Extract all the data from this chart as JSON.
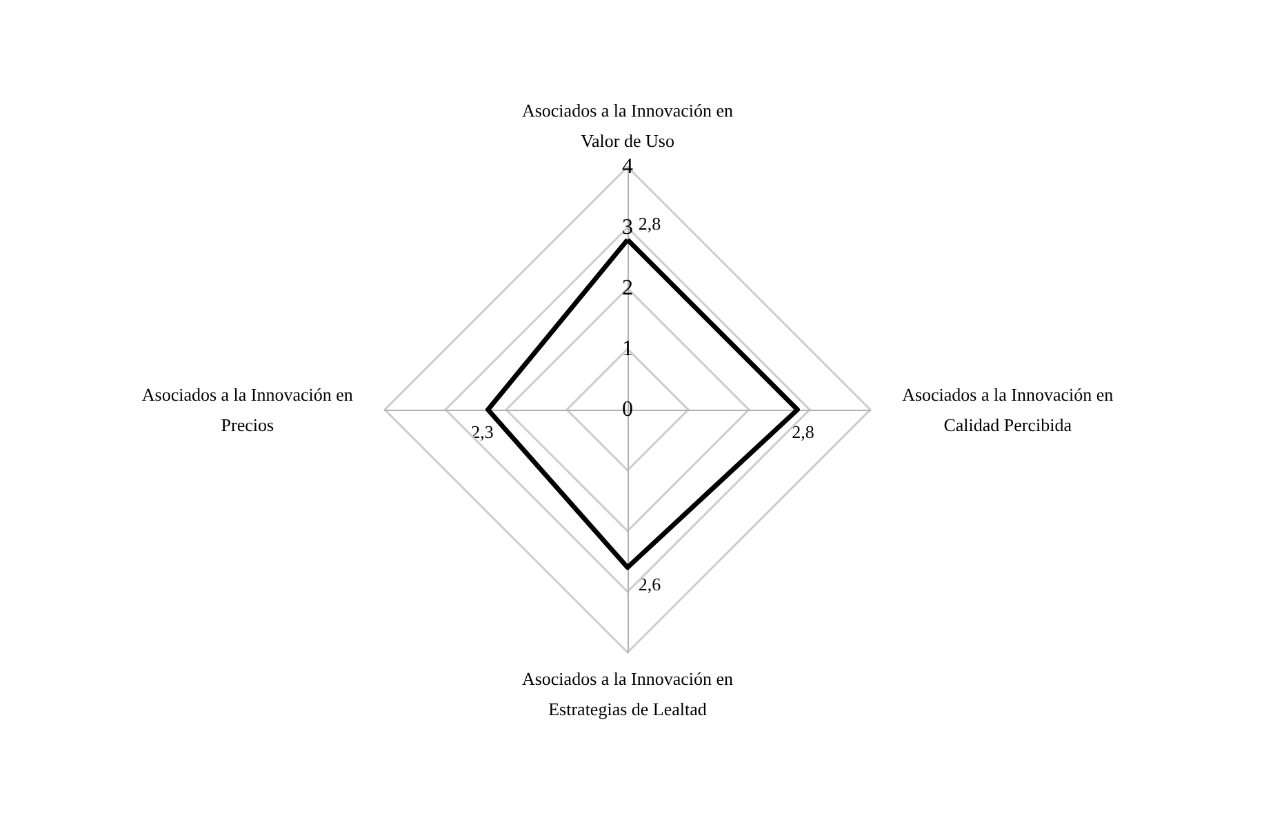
{
  "chart_data": {
    "type": "radar",
    "categories": [
      "Asociados a la Innovación en Valor de Uso",
      "Asociados a la Innovación en Calidad Percibida",
      "Asociados a la Innovación en Estrategias de Lealtad",
      "Asociados a la Innovación en Precios"
    ],
    "series": [
      {
        "color": "#000000",
        "values": [
          2.8,
          2.8,
          2.6,
          2.3
        ],
        "value_labels": [
          "2,8",
          "2,8",
          "2,6",
          "2,3"
        ]
      }
    ],
    "ylim": [
      0,
      4
    ],
    "yticks": [
      0,
      1,
      2,
      3,
      4
    ],
    "grid": true,
    "marker": "none",
    "line_style": "solid"
  }
}
